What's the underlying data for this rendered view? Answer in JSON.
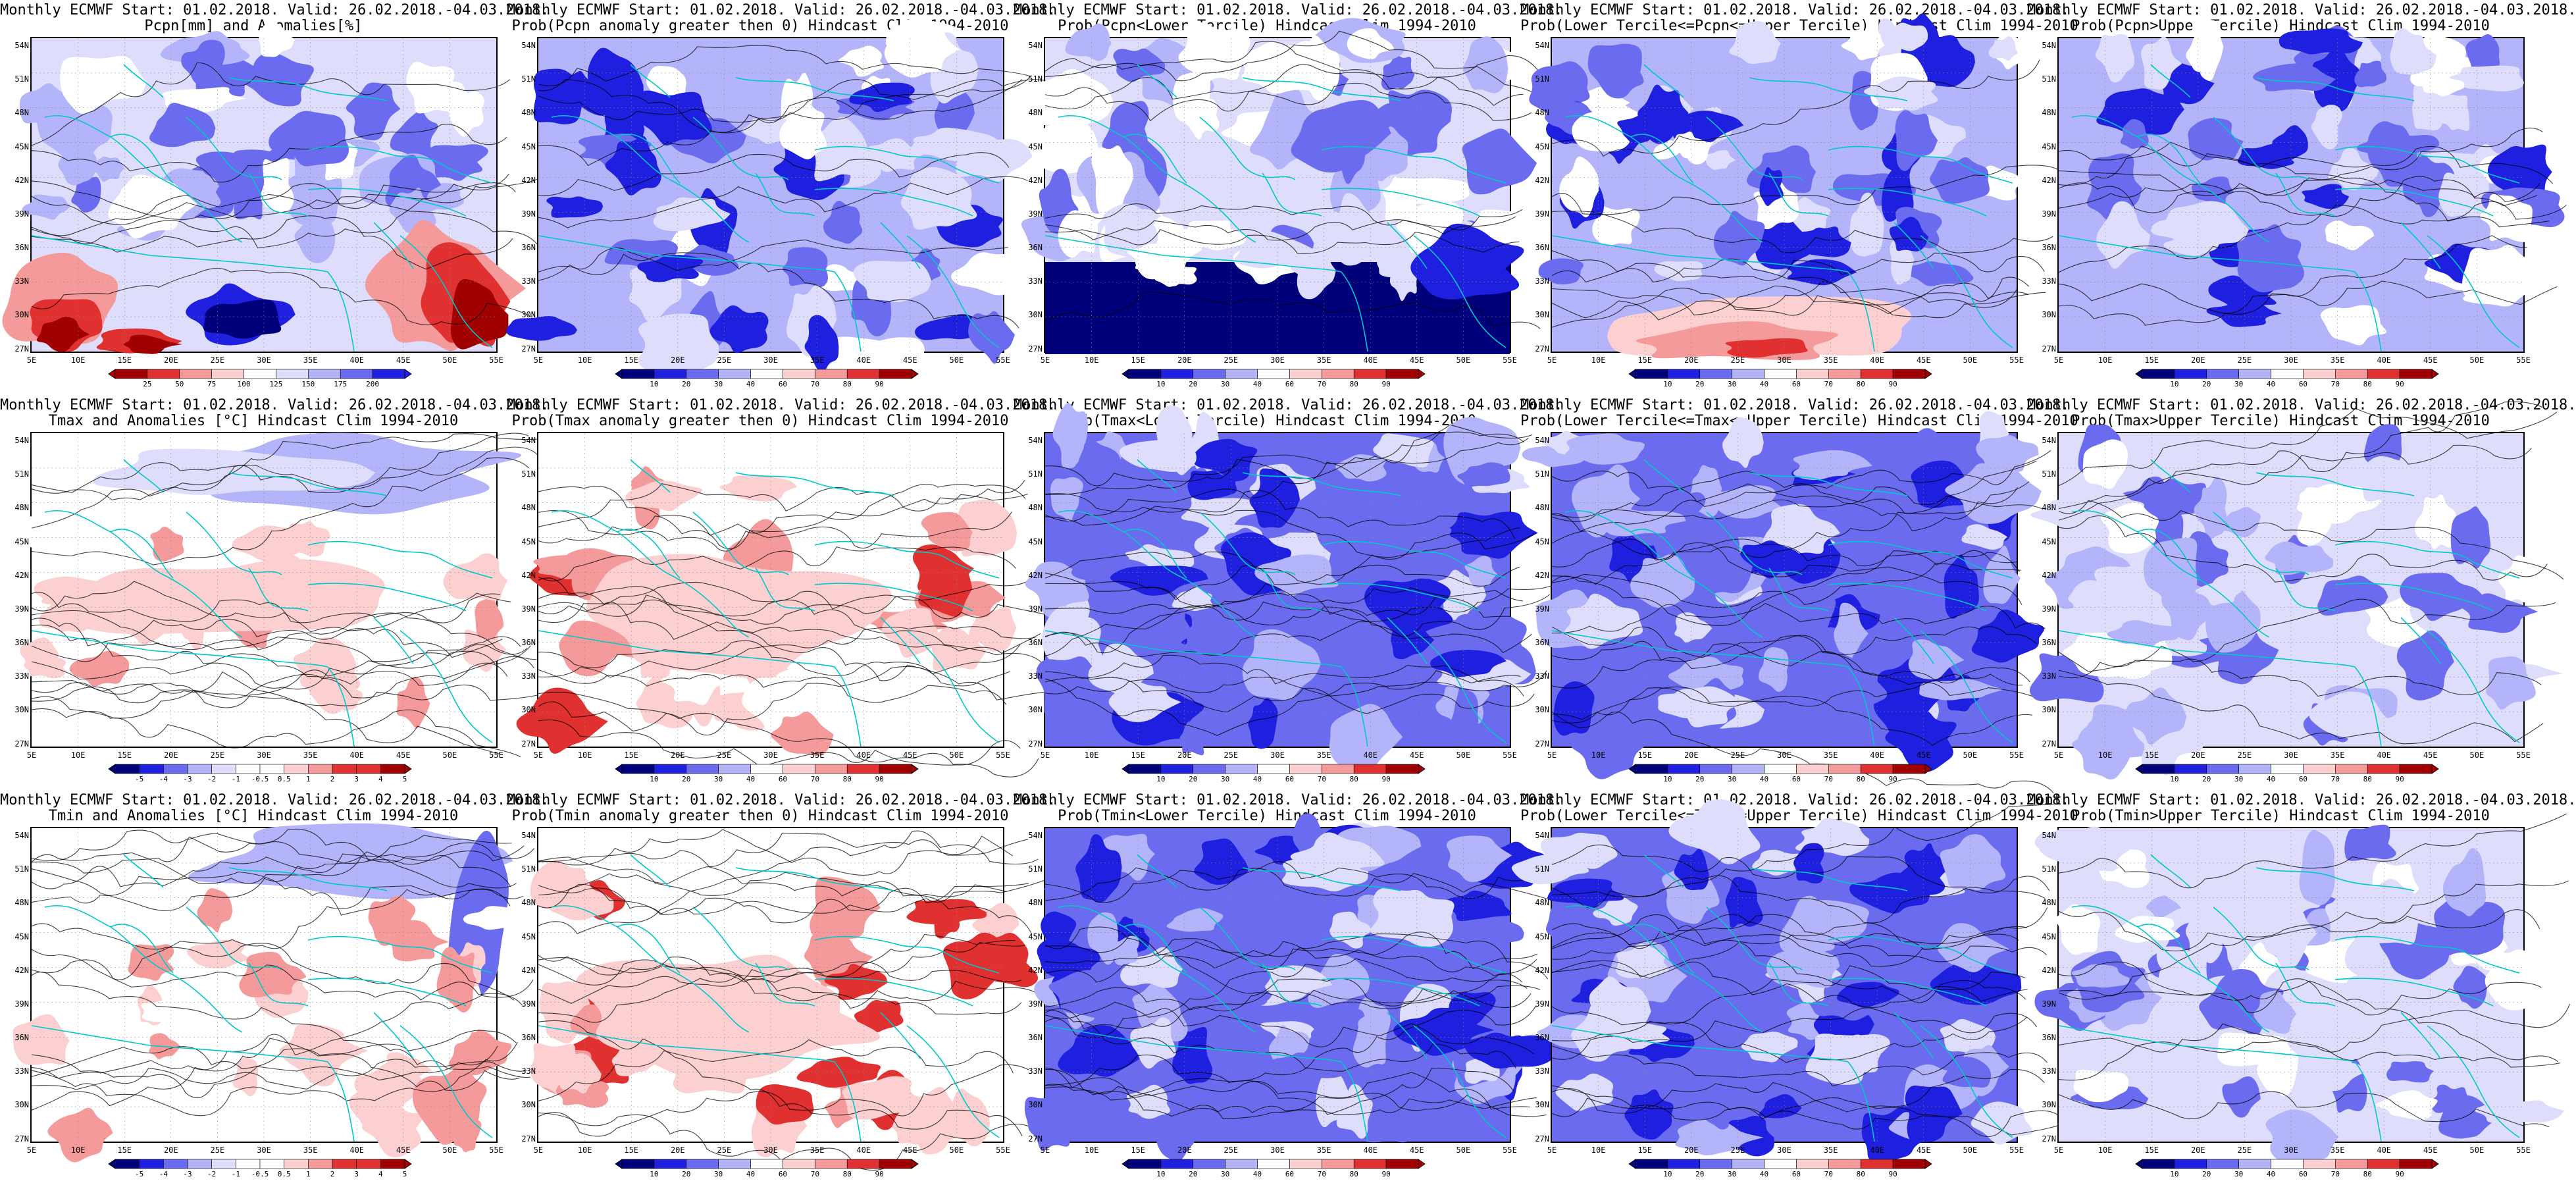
{
  "title_line1": "Monthly ECMWF Start: 01.02.2018. Valid: 26.02.2018.-04.03.2018.",
  "lat_labels": [
    "54N",
    "51N",
    "48N",
    "45N",
    "42N",
    "39N",
    "36N",
    "33N",
    "30N",
    "27N"
  ],
  "lon_labels": [
    "5E",
    "10E",
    "15E",
    "20E",
    "25E",
    "30E",
    "35E",
    "40E",
    "45E",
    "50E",
    "55E"
  ],
  "colors": {
    "blue_dark": "#00007a",
    "blue": "#1f1fe0",
    "blue_mid": "#6b6bf0",
    "blue_light": "#b4b4fa",
    "blue_pale": "#dedefc",
    "white": "#ffffff",
    "red_pale": "#fcd0d0",
    "red_light": "#f59a9a",
    "red": "#e03030",
    "red_dark": "#a00000",
    "coast": "#00c8c8",
    "contour": "#000000"
  },
  "scales": {
    "pcpn": [
      "25",
      "50",
      "75",
      "100",
      "125",
      "150",
      "175",
      "200"
    ],
    "prob": [
      "10",
      "20",
      "30",
      "40",
      "60",
      "70",
      "80",
      "90"
    ],
    "temp": [
      "-5",
      "-4",
      "-3",
      "-2",
      "-1",
      "-0.5",
      "0.5",
      "1",
      "2",
      "3",
      "4",
      "5"
    ]
  },
  "panels": [
    {
      "row": 0,
      "col": 0,
      "title2": "Pcpn[mm] and Anomalies[%]",
      "scale": "pcpn",
      "pattern": "pcpn_anom"
    },
    {
      "row": 0,
      "col": 1,
      "title2": "Prob(Pcpn anomaly greater then 0) Hindcast Clim 1994-2010",
      "scale": "prob",
      "pattern": "blue_mid"
    },
    {
      "row": 0,
      "col": 2,
      "title2": "Prob(Pcpn<Lower Tercile) Hindcast Clim 1994-2010",
      "scale": "prob",
      "pattern": "pcpn_lower"
    },
    {
      "row": 0,
      "col": 3,
      "title2": "Prob(Lower Tercile<=Pcpn<=Upper Tercile) Hindcast Clim 1994-2010",
      "scale": "prob",
      "pattern": "pcpn_mid"
    },
    {
      "row": 0,
      "col": 4,
      "title2": "Prob(Pcpn>Upper Tercile) Hindcast Clim 1994-2010",
      "scale": "prob",
      "pattern": "blue_mid"
    },
    {
      "row": 1,
      "col": 0,
      "title2": "Tmax and Anomalies [°C] Hindcast Clim 1994-2010",
      "scale": "temp",
      "pattern": "temp_anom"
    },
    {
      "row": 1,
      "col": 1,
      "title2": "Prob(Tmax anomaly greater then 0) Hindcast Clim 1994-2010",
      "scale": "prob",
      "pattern": "temp_prob"
    },
    {
      "row": 1,
      "col": 2,
      "title2": "Prob(Tmax<Lower Tercile) Hindcast Clim 1994-2010",
      "scale": "prob",
      "pattern": "blue_strong"
    },
    {
      "row": 1,
      "col": 3,
      "title2": "Prob(Lower Tercile<=Tmax<=Upper Tercile) Hindcast Clim 1994-2010",
      "scale": "prob",
      "pattern": "blue_strong"
    },
    {
      "row": 1,
      "col": 4,
      "title2": "Prob(Tmax>Upper Tercile) Hindcast Clim 1994-2010",
      "scale": "prob",
      "pattern": "blue_light"
    },
    {
      "row": 2,
      "col": 0,
      "title2": "Tmin and Anomalies [°C] Hindcast Clim 1994-2010",
      "scale": "temp",
      "pattern": "tmin_anom"
    },
    {
      "row": 2,
      "col": 1,
      "title2": "Prob(Tmin anomaly greater then 0) Hindcast Clim 1994-2010",
      "scale": "prob",
      "pattern": "temp_prob"
    },
    {
      "row": 2,
      "col": 2,
      "title2": "Prob(Tmin<Lower Tercile) Hindcast Clim 1994-2010",
      "scale": "prob",
      "pattern": "blue_strong"
    },
    {
      "row": 2,
      "col": 3,
      "title2": "Prob(Lower Tercile<=Tmin<=Upper Tercile) Hindcast Clim 1994-2010",
      "scale": "prob",
      "pattern": "blue_strong"
    },
    {
      "row": 2,
      "col": 4,
      "title2": "Prob(Tmin>Upper Tercile) Hindcast Clim 1994-2010",
      "scale": "prob",
      "pattern": "blue_light"
    }
  ]
}
